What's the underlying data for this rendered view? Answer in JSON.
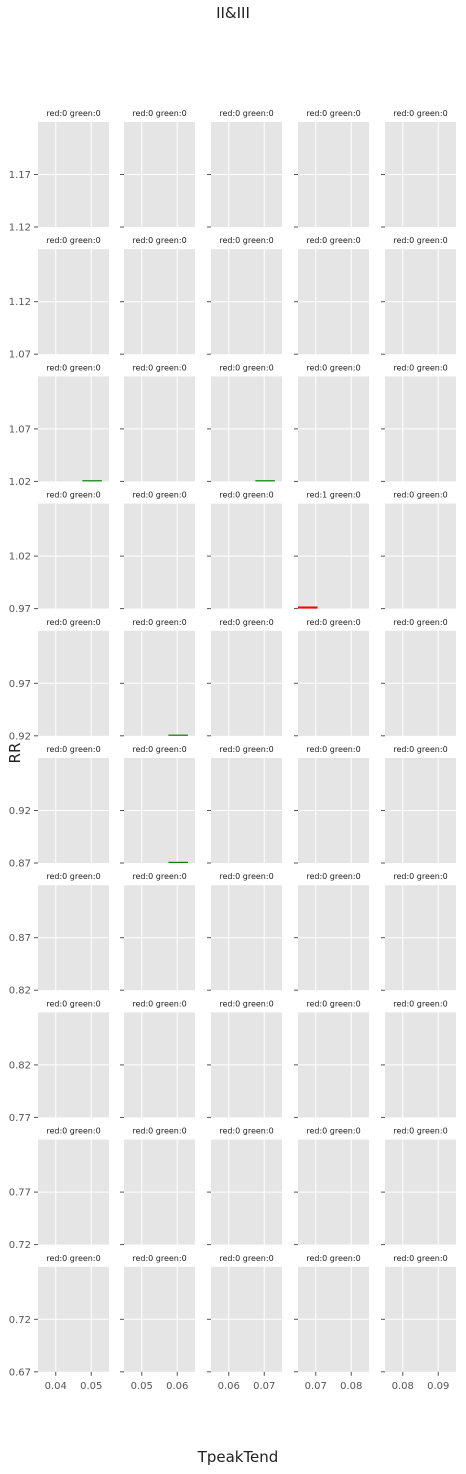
{
  "chart_data": {
    "type": "bar",
    "title": "II&III",
    "xlabel": "TpeakTend",
    "ylabel": "RR",
    "grid": true,
    "rows": [
      {
        "ylim": [
          1.12,
          1.22
        ],
        "yticks": [
          "1.12",
          "1.17"
        ]
      },
      {
        "ylim": [
          1.07,
          1.17
        ],
        "yticks": [
          "1.07",
          "1.12"
        ]
      },
      {
        "ylim": [
          1.02,
          1.12
        ],
        "yticks": [
          "1.02",
          "1.07"
        ]
      },
      {
        "ylim": [
          0.97,
          1.07
        ],
        "yticks": [
          "0.97",
          "1.02"
        ]
      },
      {
        "ylim": [
          0.92,
          1.02
        ],
        "yticks": [
          "0.92",
          "0.97"
        ]
      },
      {
        "ylim": [
          0.87,
          0.97
        ],
        "yticks": [
          "0.87",
          "0.92"
        ]
      },
      {
        "ylim": [
          0.82,
          0.92
        ],
        "yticks": [
          "0.82",
          "0.87"
        ]
      },
      {
        "ylim": [
          0.77,
          0.87
        ],
        "yticks": [
          "0.77",
          "0.82"
        ]
      },
      {
        "ylim": [
          0.72,
          0.82
        ],
        "yticks": [
          "0.72",
          "0.77"
        ]
      },
      {
        "ylim": [
          0.67,
          0.77
        ],
        "yticks": [
          "0.67",
          "0.72"
        ]
      }
    ],
    "columns": [
      {
        "xlim": [
          0.035,
          0.055
        ],
        "xticks": [
          "0.04",
          "0.05"
        ]
      },
      {
        "xlim": [
          0.045,
          0.065
        ],
        "xticks": [
          "0.05",
          "0.06"
        ]
      },
      {
        "xlim": [
          0.055,
          0.075
        ],
        "xticks": [
          "0.06",
          "0.07"
        ]
      },
      {
        "xlim": [
          0.065,
          0.085
        ],
        "xticks": [
          "0.07",
          "0.08"
        ]
      },
      {
        "xlim": [
          0.075,
          0.095
        ],
        "xticks": [
          "0.08",
          "0.09"
        ]
      }
    ],
    "subplot_titles": [
      [
        "red:0 green:0",
        "red:0 green:0",
        "red:0 green:0",
        "red:0 green:0",
        "red:0 green:0"
      ],
      [
        "red:0 green:0",
        "red:0 green:0",
        "red:0 green:0",
        "red:0 green:0",
        "red:0 green:0"
      ],
      [
        "red:0 green:0",
        "red:0 green:0",
        "red:0 green:0",
        "red:0 green:0",
        "red:0 green:0"
      ],
      [
        "red:0 green:0",
        "red:0 green:0",
        "red:0 green:0",
        "red:1 green:0",
        "red:0 green:0"
      ],
      [
        "red:0 green:0",
        "red:0 green:0",
        "red:0 green:0",
        "red:0 green:0",
        "red:0 green:0"
      ],
      [
        "red:0 green:0",
        "red:0 green:0",
        "red:0 green:0",
        "red:0 green:0",
        "red:0 green:0"
      ],
      [
        "red:0 green:0",
        "red:0 green:0",
        "red:0 green:0",
        "red:0 green:0",
        "red:0 green:0"
      ],
      [
        "red:0 green:0",
        "red:0 green:0",
        "red:0 green:0",
        "red:0 green:0",
        "red:0 green:0"
      ],
      [
        "red:0 green:0",
        "red:0 green:0",
        "red:0 green:0",
        "red:0 green:0",
        "red:0 green:0"
      ],
      [
        "red:0 green:0",
        "red:0 green:0",
        "red:0 green:0",
        "red:0 green:0",
        "red:0 green:0"
      ]
    ],
    "bars": [
      {
        "row": 3,
        "col": 3,
        "color": "#ff0000",
        "x0": 0.065,
        "x1": 0.0705,
        "y0": 0.97,
        "y1": 0.972
      },
      {
        "row": 2,
        "col": 0,
        "color": "#008000",
        "x0": 0.0475,
        "x1": 0.053,
        "y0": 1.02,
        "y1": 1.0202
      },
      {
        "row": 2,
        "col": 2,
        "color": "#008000",
        "x0": 0.0675,
        "x1": 0.073,
        "y0": 1.02,
        "y1": 1.0202
      },
      {
        "row": 4,
        "col": 1,
        "color": "#008000",
        "x0": 0.0575,
        "x1": 0.063,
        "y0": 0.92,
        "y1": 0.9202
      },
      {
        "row": 5,
        "col": 1,
        "color": "#008000",
        "x0": 0.0575,
        "x1": 0.063,
        "y0": 0.87,
        "y1": 0.8702
      }
    ],
    "colors": {
      "panel_bg": "#e5e5e5",
      "grid": "#ffffff",
      "red": "#ff0000",
      "green": "#008000"
    }
  }
}
